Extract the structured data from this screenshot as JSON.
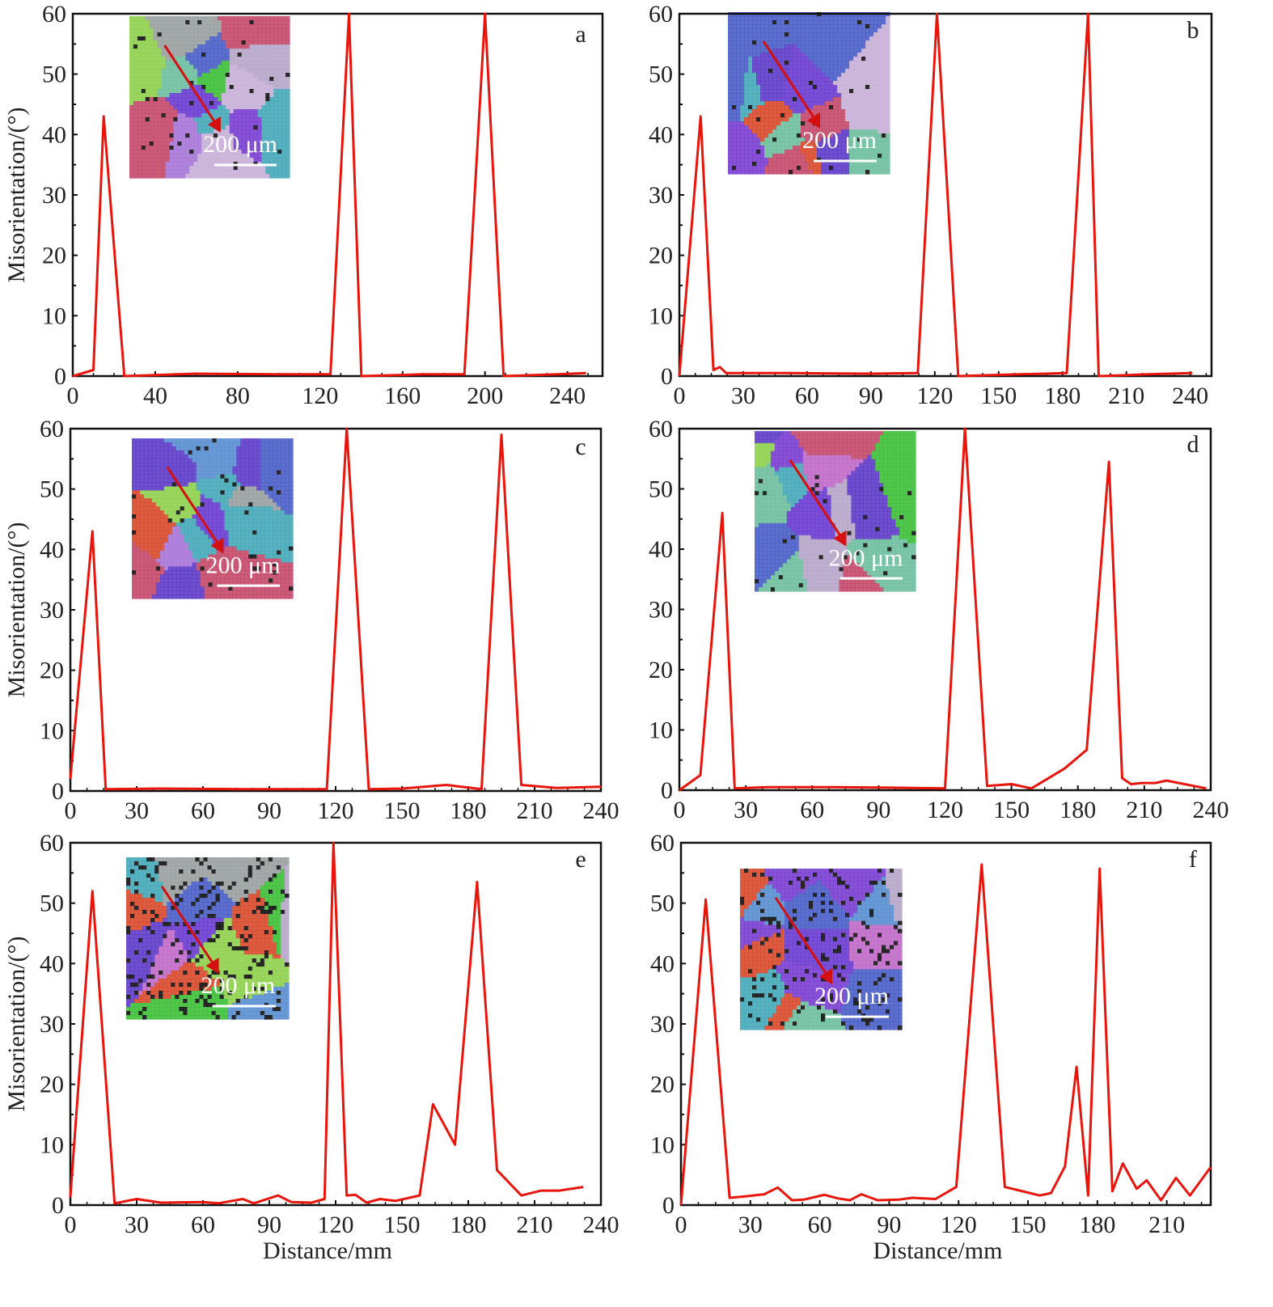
{
  "colors": {
    "line": "#e8150c",
    "axis": "#111111",
    "arrow": "#d41010"
  },
  "chart_data": [
    {
      "panel": "a",
      "type": "line",
      "xlabel": "",
      "ylabel": "Misorientation/(°)",
      "xlim": [
        0,
        257
      ],
      "ylim": [
        0,
        60
      ],
      "xticks": [
        0,
        40,
        80,
        120,
        160,
        200,
        240
      ],
      "yticks": [
        0,
        10,
        20,
        30,
        40,
        50,
        60
      ],
      "inset_scale": "200 μm",
      "x": [
        0,
        10,
        15,
        25,
        60,
        100,
        125,
        134,
        140,
        170,
        190,
        200,
        209,
        235,
        249
      ],
      "y": [
        0,
        1,
        43,
        0,
        0.4,
        0.3,
        0.3,
        60,
        0,
        0.3,
        0.3,
        60,
        0,
        0.3,
        0.5
      ]
    },
    {
      "panel": "b",
      "type": "line",
      "xlabel": "",
      "ylabel": "",
      "xlim": [
        0,
        250
      ],
      "ylim": [
        0,
        60
      ],
      "xticks": [
        0,
        30,
        60,
        90,
        120,
        150,
        180,
        210,
        240
      ],
      "yticks": [
        0,
        10,
        20,
        30,
        40,
        50,
        60
      ],
      "inset_scale": "200 μm",
      "x": [
        0,
        10,
        16,
        19,
        22,
        50,
        90,
        112,
        121,
        131,
        160,
        182,
        192,
        197,
        220,
        241
      ],
      "y": [
        0,
        43,
        1,
        1.5,
        0.5,
        0.5,
        0.4,
        0.5,
        60,
        0,
        0.3,
        0.5,
        60,
        0,
        0.3,
        0.5
      ]
    },
    {
      "panel": "c",
      "type": "line",
      "xlabel": "",
      "ylabel": "Misorientation/(°)",
      "xlim": [
        0,
        240
      ],
      "ylim": [
        0,
        60
      ],
      "xticks": [
        0,
        30,
        60,
        90,
        120,
        150,
        180,
        210,
        240
      ],
      "yticks": [
        0,
        10,
        20,
        30,
        40,
        50,
        60
      ],
      "inset_scale": "200 μm",
      "x": [
        0,
        10,
        16,
        40,
        80,
        116,
        125,
        135,
        150,
        170,
        186,
        195,
        204,
        220,
        240
      ],
      "y": [
        2,
        43,
        0.3,
        0.4,
        0.3,
        0.3,
        60,
        0.3,
        0.4,
        1,
        0.3,
        59,
        1,
        0.5,
        0.7
      ]
    },
    {
      "panel": "d",
      "type": "line",
      "xlabel": "",
      "ylabel": "",
      "xlim": [
        0,
        240
      ],
      "ylim": [
        0,
        60
      ],
      "xticks": [
        0,
        30,
        60,
        90,
        120,
        150,
        180,
        210,
        240
      ],
      "yticks": [
        0,
        10,
        20,
        30,
        40,
        50,
        60
      ],
      "inset_scale": "200 μm",
      "x": [
        0,
        9.5,
        19.4,
        25,
        40,
        70,
        100,
        120,
        129,
        139,
        150,
        159,
        174,
        184,
        194,
        200,
        204,
        209,
        215,
        220,
        238
      ],
      "y": [
        0,
        2.5,
        46,
        0.3,
        0.5,
        0.5,
        0.4,
        0.3,
        60,
        0.7,
        1,
        0.3,
        3.6,
        6.7,
        54.5,
        2,
        1,
        1.2,
        1.2,
        1.6,
        0.3
      ]
    },
    {
      "panel": "e",
      "type": "line",
      "xlabel": "Distance/mm",
      "ylabel": "Misorientation/(°)",
      "xlim": [
        0,
        240
      ],
      "ylim": [
        0,
        60
      ],
      "xticks": [
        0,
        30,
        60,
        90,
        120,
        150,
        180,
        210,
        240
      ],
      "yticks": [
        0,
        10,
        20,
        30,
        40,
        50,
        60
      ],
      "inset_scale": "200 μm",
      "x": [
        0,
        10,
        20,
        30,
        41,
        60,
        67,
        78,
        83,
        94,
        100,
        109,
        115,
        119,
        125,
        129,
        134,
        140,
        147,
        158,
        164,
        174,
        184,
        193,
        204,
        213,
        221,
        232
      ],
      "y": [
        1.3,
        52,
        0.3,
        1,
        0.4,
        0.5,
        0.3,
        1,
        0.3,
        1.6,
        0.5,
        0.4,
        1,
        60,
        1.6,
        1.7,
        0.4,
        1,
        0.7,
        1.6,
        16.7,
        10,
        53.5,
        5.8,
        1.6,
        2.4,
        2.4,
        3
      ]
    },
    {
      "panel": "f",
      "type": "line",
      "xlabel": "Distance/mm",
      "ylabel": "",
      "xlim": [
        0,
        229
      ],
      "ylim": [
        0,
        60
      ],
      "xticks": [
        0,
        30,
        60,
        90,
        120,
        150,
        180,
        210
      ],
      "yticks": [
        0,
        10,
        20,
        30,
        40,
        50,
        60
      ],
      "inset_scale": "200 μm",
      "x": [
        0,
        10.7,
        21,
        26.8,
        36,
        41.8,
        48,
        53,
        62,
        68,
        73,
        78,
        85,
        94,
        100,
        110,
        119,
        130,
        140,
        155,
        160,
        166,
        171,
        176,
        181,
        186.5,
        191,
        197,
        201.3,
        207.5,
        214,
        220,
        229
      ],
      "y": [
        0,
        50.6,
        1.2,
        1.4,
        1.8,
        2.9,
        0.8,
        0.9,
        1.7,
        1.1,
        0.8,
        1.8,
        0.8,
        0.9,
        1.2,
        1,
        3,
        56.4,
        3,
        1.6,
        2,
        6.4,
        22.9,
        1.6,
        55.7,
        2.3,
        6.9,
        2.7,
        4.1,
        0.8,
        4.5,
        1.6,
        6.3
      ]
    }
  ]
}
